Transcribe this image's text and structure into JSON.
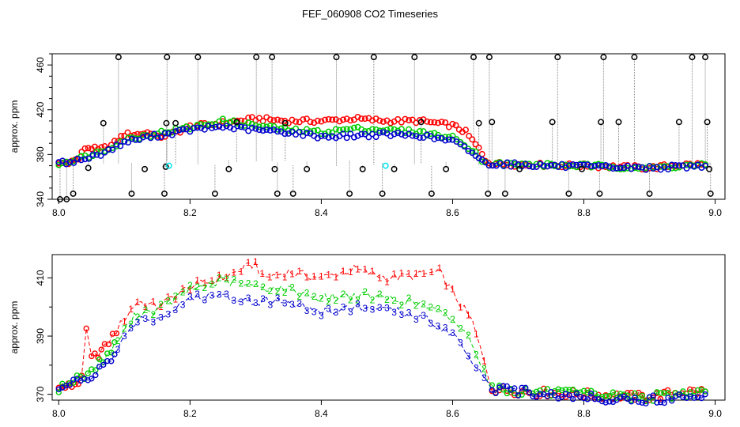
{
  "chart_data": [
    {
      "type": "scatter",
      "title": "FEF_060908  CO2 Timeseries",
      "ylabel": "approx. ppm",
      "xlim": [
        8.0,
        9.0
      ],
      "ylim": [
        340,
        470
      ],
      "x_ticks": [
        "8.0",
        "8.2",
        "8.4",
        "8.6",
        "8.8",
        "9.0"
      ],
      "y_ticks": [
        "340",
        "380",
        "420",
        "460"
      ],
      "series": [
        {
          "name": "black-outliers",
          "color": "#000000",
          "points": [
            [
              8.002,
              340
            ],
            [
              8.012,
              340
            ],
            [
              8.022,
              345
            ],
            [
              8.045,
              368
            ],
            [
              8.068,
              408
            ],
            [
              8.091,
              467
            ],
            [
              8.111,
              345
            ],
            [
              8.131,
              367
            ],
            [
              8.161,
              345
            ],
            [
              8.163,
              369
            ],
            [
              8.164,
              408
            ],
            [
              8.165,
              467
            ],
            [
              8.178,
              408
            ],
            [
              8.212,
              467
            ],
            [
              8.238,
              345
            ],
            [
              8.259,
              367
            ],
            [
              8.271,
              409
            ],
            [
              8.301,
              467
            ],
            [
              8.325,
              467
            ],
            [
              8.329,
              367
            ],
            [
              8.333,
              345
            ],
            [
              8.345,
              408
            ],
            [
              8.357,
              345
            ],
            [
              8.378,
              367
            ],
            [
              8.423,
              467
            ],
            [
              8.443,
              345
            ],
            [
              8.463,
              367
            ],
            [
              8.48,
              467
            ],
            [
              8.493,
              345
            ],
            [
              8.511,
              367
            ],
            [
              8.542,
              467
            ],
            [
              8.552,
              409
            ],
            [
              8.568,
              345
            ],
            [
              8.59,
              367
            ],
            [
              8.632,
              467
            ],
            [
              8.64,
              408
            ],
            [
              8.654,
              345
            ],
            [
              8.656,
              467
            ],
            [
              8.66,
              409
            ],
            [
              8.68,
              345
            ],
            [
              8.702,
              367
            ],
            [
              8.752,
              409
            ],
            [
              8.76,
              467
            ],
            [
              8.777,
              345
            ],
            [
              8.797,
              367
            ],
            [
              8.824,
              345
            ],
            [
              8.826,
              409
            ],
            [
              8.83,
              467
            ],
            [
              8.853,
              409
            ],
            [
              8.877,
              467
            ],
            [
              8.9,
              345
            ],
            [
              8.945,
              409
            ],
            [
              8.965,
              467
            ],
            [
              8.985,
              467
            ],
            [
              8.988,
              409
            ],
            [
              8.991,
              367
            ],
            [
              8.993,
              345
            ]
          ]
        },
        {
          "name": "cyan",
          "color": "#00e5ee",
          "points": [
            [
              8.168,
              370
            ],
            [
              8.498,
              370
            ]
          ]
        }
      ],
      "lines": [
        {
          "name": "1",
          "color": "#ff0000",
          "points": [
            [
              8.0,
              372
            ],
            [
              8.02,
              374
            ],
            [
              8.03,
              376
            ],
            [
              8.04,
              386
            ],
            [
              8.05,
              386
            ],
            [
              8.06,
              384
            ],
            [
              8.08,
              388
            ],
            [
              8.1,
              398
            ],
            [
              8.12,
              398
            ],
            [
              8.14,
              400
            ],
            [
              8.15,
              395
            ],
            [
              8.18,
              400
            ],
            [
              8.2,
              405
            ],
            [
              8.25,
              408
            ],
            [
              8.3,
              412
            ],
            [
              8.35,
              410
            ],
            [
              8.4,
              410
            ],
            [
              8.45,
              412
            ],
            [
              8.5,
              410
            ],
            [
              8.55,
              410
            ],
            [
              8.6,
              406
            ],
            [
              8.62,
              400
            ],
            [
              8.64,
              385
            ],
            [
              8.65,
              375
            ],
            [
              8.66,
              372
            ],
            [
              8.7,
              371
            ],
            [
              8.8,
              370
            ],
            [
              8.9,
              368
            ],
            [
              8.95,
              371
            ],
            [
              8.985,
              371
            ]
          ]
        },
        {
          "name": "2",
          "color": "#00cd00",
          "points": [
            [
              8.0,
              372
            ],
            [
              8.04,
              378
            ],
            [
              8.07,
              384
            ],
            [
              8.1,
              393
            ],
            [
              8.14,
              398
            ],
            [
              8.2,
              404
            ],
            [
              8.25,
              410
            ],
            [
              8.3,
              406
            ],
            [
              8.35,
              402
            ],
            [
              8.4,
              400
            ],
            [
              8.45,
              403
            ],
            [
              8.5,
              402
            ],
            [
              8.55,
              400
            ],
            [
              8.6,
              395
            ],
            [
              8.63,
              385
            ],
            [
              8.65,
              372
            ],
            [
              8.7,
              371
            ],
            [
              8.8,
              370
            ],
            [
              8.9,
              368
            ],
            [
              8.985,
              371
            ]
          ]
        },
        {
          "name": "3",
          "color": "#0000cd",
          "points": [
            [
              8.0,
              372
            ],
            [
              8.04,
              376
            ],
            [
              8.07,
              382
            ],
            [
              8.1,
              391
            ],
            [
              8.14,
              396
            ],
            [
              8.2,
              402
            ],
            [
              8.25,
              405
            ],
            [
              8.3,
              402
            ],
            [
              8.35,
              400
            ],
            [
              8.4,
              396
            ],
            [
              8.45,
              397
            ],
            [
              8.5,
              398
            ],
            [
              8.55,
              397
            ],
            [
              8.6,
              392
            ],
            [
              8.63,
              382
            ],
            [
              8.65,
              372
            ],
            [
              8.7,
              371
            ],
            [
              8.8,
              369
            ],
            [
              8.9,
              368
            ],
            [
              8.985,
              370
            ]
          ]
        }
      ]
    },
    {
      "type": "line",
      "ylabel": "approx. ppm",
      "xlim": [
        8.0,
        9.0
      ],
      "ylim": [
        368,
        418
      ],
      "x_ticks": [
        "8.0",
        "8.2",
        "8.4",
        "8.6",
        "8.8",
        "9.0"
      ],
      "y_ticks": [
        "370",
        "390",
        "410"
      ],
      "series": [
        {
          "name": "1",
          "color": "#ff0000",
          "points": [
            [
              8.0,
              372
            ],
            [
              8.02,
              373
            ],
            [
              8.035,
              375
            ],
            [
              8.042,
              392
            ],
            [
              8.05,
              382
            ],
            [
              8.07,
              386
            ],
            [
              8.1,
              396
            ],
            [
              8.12,
              402
            ],
            [
              8.15,
              400
            ],
            [
              8.2,
              407
            ],
            [
              8.25,
              410
            ],
            [
              8.3,
              415
            ],
            [
              8.31,
              410
            ],
            [
              8.35,
              412
            ],
            [
              8.4,
              410
            ],
            [
              8.45,
              413
            ],
            [
              8.5,
              410
            ],
            [
              8.55,
              411
            ],
            [
              8.58,
              412
            ],
            [
              8.6,
              405
            ],
            [
              8.63,
              395
            ],
            [
              8.66,
              372
            ],
            [
              8.7,
              371
            ],
            [
              8.8,
              370
            ],
            [
              8.9,
              369
            ],
            [
              8.95,
              371
            ],
            [
              8.985,
              371
            ]
          ]
        },
        {
          "name": "2",
          "color": "#00cd00",
          "points": [
            [
              8.0,
              372
            ],
            [
              8.05,
              378
            ],
            [
              8.08,
              385
            ],
            [
              8.1,
              392
            ],
            [
              8.12,
              398
            ],
            [
              8.15,
              399
            ],
            [
              8.2,
              406
            ],
            [
              8.25,
              409
            ],
            [
              8.3,
              407
            ],
            [
              8.35,
              406
            ],
            [
              8.4,
              403
            ],
            [
              8.45,
              404
            ],
            [
              8.5,
              403
            ],
            [
              8.55,
              401
            ],
            [
              8.6,
              396
            ],
            [
              8.63,
              388
            ],
            [
              8.66,
              372
            ],
            [
              8.7,
              371
            ],
            [
              8.8,
              370
            ],
            [
              8.9,
              369
            ],
            [
              8.985,
              371
            ]
          ]
        },
        {
          "name": "3",
          "color": "#0000cd",
          "points": [
            [
              8.0,
              372
            ],
            [
              8.05,
              376
            ],
            [
              8.08,
              382
            ],
            [
              8.1,
              389
            ],
            [
              8.12,
              396
            ],
            [
              8.15,
              396
            ],
            [
              8.2,
              403
            ],
            [
              8.25,
              404
            ],
            [
              8.3,
              402
            ],
            [
              8.35,
              402
            ],
            [
              8.4,
              398
            ],
            [
              8.45,
              400
            ],
            [
              8.5,
              399
            ],
            [
              8.55,
              397
            ],
            [
              8.6,
              391
            ],
            [
              8.63,
              382
            ],
            [
              8.66,
              372
            ],
            [
              8.7,
              371
            ],
            [
              8.8,
              369
            ],
            [
              8.9,
              368
            ],
            [
              8.985,
              370
            ]
          ]
        }
      ]
    }
  ]
}
